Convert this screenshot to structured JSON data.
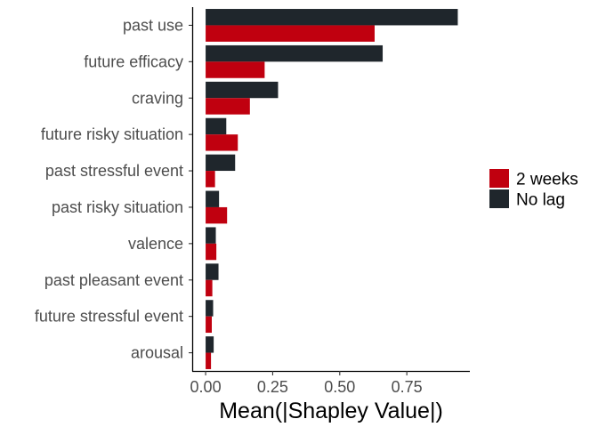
{
  "chart_data": {
    "type": "bar",
    "orientation": "horizontal",
    "categories": [
      "past use",
      "future efficacy",
      "craving",
      "future risky situation",
      "past stressful event",
      "past risky situation",
      "valence",
      "past pleasant event",
      "future stressful event",
      "arousal"
    ],
    "series": [
      {
        "name": "No lag",
        "color": "#1f262c",
        "values": [
          0.94,
          0.66,
          0.27,
          0.077,
          0.11,
          0.05,
          0.038,
          0.048,
          0.028,
          0.03
        ]
      },
      {
        "name": "2 weeks",
        "color": "#c0000f",
        "values": [
          0.63,
          0.22,
          0.165,
          0.12,
          0.035,
          0.08,
          0.04,
          0.025,
          0.023,
          0.02
        ]
      }
    ],
    "xlabel": "Mean(|Shapley Value|)",
    "ylabel": "",
    "xlim": [
      -0.05,
      0.985
    ],
    "xticks": [
      0.0,
      0.25,
      0.5,
      0.75
    ],
    "xtick_labels": [
      "0.00",
      "0.25",
      "0.50",
      "0.75"
    ],
    "legend": {
      "position": "right",
      "items": [
        {
          "label": "2 weeks",
          "color": "#c0000f"
        },
        {
          "label": "No lag",
          "color": "#1f262c"
        }
      ]
    },
    "grid": false
  }
}
